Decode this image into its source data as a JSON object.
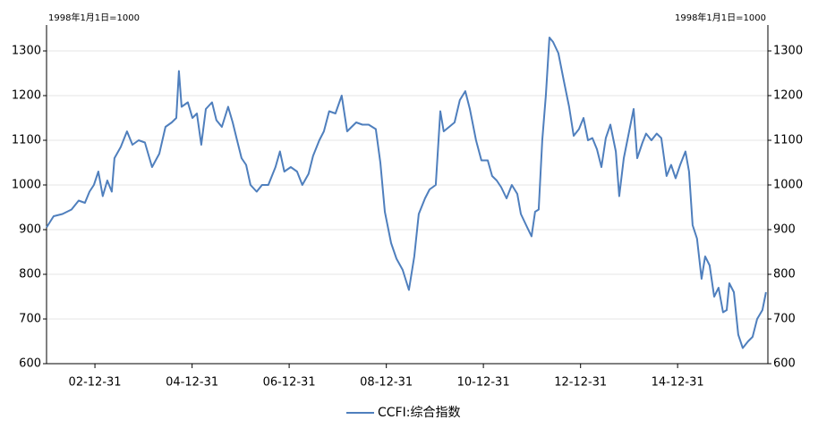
{
  "chart_data": {
    "type": "line",
    "y_label": "1998年1月1日=1000",
    "y2_label": "1998年1月1日=1000",
    "x": [
      "02-01-01",
      "02-02-23",
      "02-05-01",
      "02-07-08",
      "02-08-31",
      "02-10-17",
      "02-11-20",
      "02-12-23",
      "03-01-26",
      "03-02-28",
      "03-04-03",
      "03-05-07",
      "03-05-27",
      "03-07-13",
      "03-08-29",
      "03-10-09",
      "03-11-25",
      "04-01-11",
      "04-03-05",
      "04-04-28",
      "04-06-14",
      "04-07-31",
      "04-09-03",
      "04-09-23",
      "04-10-13",
      "04-11-29",
      "05-01-02",
      "05-02-05",
      "05-03-10",
      "05-04-13",
      "05-05-30",
      "05-07-02",
      "05-08-12",
      "05-09-28",
      "05-11-01",
      "05-12-04",
      "06-01-07",
      "06-02-10",
      "06-03-15",
      "06-05-01",
      "06-06-10",
      "06-07-27",
      "06-09-19",
      "06-10-23",
      "06-11-25",
      "07-01-12",
      "07-02-28",
      "07-04-09",
      "07-05-26",
      "07-06-29",
      "07-08-15",
      "07-09-18",
      "07-10-28",
      "07-12-14",
      "08-01-30",
      "08-03-11",
      "08-04-14",
      "08-05-18",
      "08-07-04",
      "08-08-20",
      "08-10-13",
      "08-11-16",
      "08-12-20",
      "09-02-05",
      "09-03-17",
      "09-05-03",
      "09-06-19",
      "09-07-29",
      "09-09-01",
      "09-10-18",
      "09-11-21",
      "10-01-07",
      "10-02-10",
      "10-03-08",
      "10-04-18",
      "10-05-28",
      "10-07-07",
      "10-08-17",
      "10-09-20",
      "10-11-06",
      "10-12-16",
      "11-02-02",
      "11-03-07",
      "11-04-10",
      "11-05-14",
      "11-06-23",
      "11-08-02",
      "11-09-12",
      "11-10-09",
      "11-11-18",
      "11-12-28",
      "12-01-24",
      "12-02-20",
      "12-03-18",
      "12-04-14",
      "12-05-11",
      "12-06-07",
      "12-07-17",
      "12-08-26",
      "12-10-06",
      "12-11-09",
      "12-12-19",
      "13-01-22",
      "13-02-25",
      "13-03-30",
      "13-05-03",
      "13-06-06",
      "13-07-09",
      "13-08-12",
      "13-09-22",
      "13-10-18",
      "13-11-21",
      "13-12-25",
      "14-02-03",
      "14-03-02",
      "14-04-11",
      "14-05-08",
      "14-06-17",
      "14-07-27",
      "14-08-30",
      "14-10-09",
      "14-11-12",
      "14-12-16",
      "15-01-19",
      "15-02-28",
      "15-03-27",
      "15-04-23",
      "15-05-26",
      "15-06-29",
      "15-07-26",
      "15-08-29",
      "15-10-02",
      "15-11-04",
      "15-12-08",
      "16-01-04",
      "16-01-24",
      "16-02-27",
      "16-03-31",
      "16-05-04",
      "16-06-13",
      "16-07-17",
      "16-08-20",
      "16-09-29",
      "16-10-26"
    ],
    "series": [
      {
        "name": "CCFI:综合指数",
        "color": "#4f7fbd",
        "values": [
          905,
          930,
          935,
          945,
          965,
          960,
          985,
          1000,
          1030,
          975,
          1010,
          985,
          1060,
          1085,
          1120,
          1090,
          1100,
          1095,
          1040,
          1070,
          1130,
          1140,
          1150,
          1255,
          1175,
          1185,
          1150,
          1160,
          1090,
          1170,
          1185,
          1145,
          1130,
          1175,
          1140,
          1100,
          1060,
          1045,
          1000,
          985,
          1000,
          1000,
          1040,
          1075,
          1030,
          1040,
          1030,
          1000,
          1025,
          1065,
          1100,
          1120,
          1165,
          1160,
          1200,
          1120,
          1130,
          1140,
          1135,
          1135,
          1125,
          1050,
          940,
          870,
          835,
          810,
          765,
          840,
          935,
          970,
          990,
          1000,
          1165,
          1120,
          1130,
          1140,
          1190,
          1210,
          1170,
          1100,
          1055,
          1055,
          1020,
          1010,
          995,
          970,
          1000,
          980,
          935,
          910,
          885,
          940,
          945,
          1100,
          1200,
          1330,
          1320,
          1295,
          1235,
          1175,
          1110,
          1125,
          1150,
          1100,
          1105,
          1080,
          1040,
          1105,
          1135,
          1075,
          975,
          1060,
          1110,
          1170,
          1060,
          1095,
          1115,
          1100,
          1115,
          1105,
          1020,
          1045,
          1015,
          1045,
          1075,
          1030,
          910,
          880,
          790,
          840,
          820,
          750,
          770,
          715,
          720,
          780,
          760,
          665,
          635,
          650,
          660,
          700,
          720,
          760
        ]
      }
    ],
    "xlim": [
      "02-01-01",
      "16-11-09"
    ],
    "xticks": [
      "02-12-31",
      "04-12-31",
      "06-12-31",
      "08-12-31",
      "10-12-31",
      "12-12-31",
      "14-12-31"
    ],
    "ylim": [
      600,
      1350
    ],
    "yticks": [
      600,
      700,
      800,
      900,
      1000,
      1100,
      1200,
      1300
    ],
    "y2lim": [
      600,
      1350
    ],
    "y2ticks": [
      600,
      700,
      800,
      900,
      1000,
      1100,
      1200,
      1300
    ],
    "grid": true,
    "legend": "bottom"
  }
}
